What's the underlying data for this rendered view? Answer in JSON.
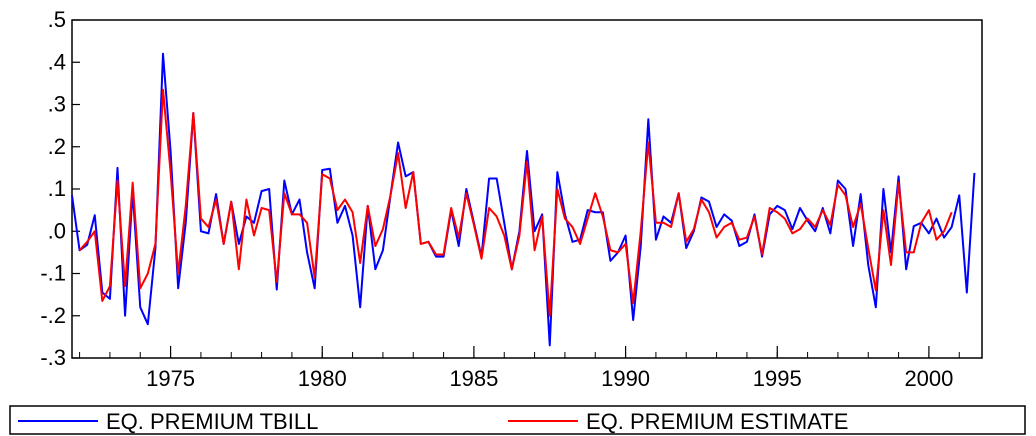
{
  "chart_data": {
    "type": "line",
    "xlim": [
      1971.75,
      2001.75
    ],
    "ylim": [
      -0.3,
      0.5
    ],
    "x_ticks": [
      {
        "value": 1975,
        "label": "1975"
      },
      {
        "value": 1980,
        "label": "1980"
      },
      {
        "value": 1985,
        "label": "1985"
      },
      {
        "value": 1990,
        "label": "1990"
      },
      {
        "value": 1995,
        "label": "1995"
      },
      {
        "value": 2000,
        "label": "2000"
      }
    ],
    "y_ticks": [
      {
        "value": -0.3,
        "label": "-.3"
      },
      {
        "value": -0.2,
        "label": "-.2"
      },
      {
        "value": -0.1,
        "label": "-.1"
      },
      {
        "value": 0.0,
        "label": ".0"
      },
      {
        "value": 0.1,
        "label": ".1"
      },
      {
        "value": 0.2,
        "label": ".2"
      },
      {
        "value": 0.3,
        "label": ".3"
      },
      {
        "value": 0.4,
        "label": ".4"
      },
      {
        "value": 0.5,
        "label": ".5"
      }
    ],
    "grid": false,
    "legend_position": "bottom",
    "series": [
      {
        "name": "EQ. PREMIUM TBILL",
        "color": "#0000ff",
        "x_start": 1971.75,
        "x_step": 0.25,
        "values": [
          0.085,
          -0.045,
          -0.032,
          0.038,
          -0.145,
          -0.16,
          0.15,
          -0.2,
          0.095,
          -0.18,
          -0.22,
          -0.04,
          0.42,
          0.19,
          -0.135,
          0.02,
          0.28,
          0.0,
          -0.005,
          0.088,
          -0.03,
          0.07,
          -0.03,
          0.035,
          0.02,
          0.095,
          0.1,
          -0.138,
          0.12,
          0.04,
          0.075,
          -0.05,
          -0.135,
          0.145,
          0.148,
          0.02,
          0.06,
          -0.01,
          -0.18,
          0.06,
          -0.09,
          -0.045,
          0.085,
          0.21,
          0.13,
          0.14,
          -0.03,
          -0.025,
          -0.06,
          -0.06,
          0.05,
          -0.035,
          0.1,
          0.02,
          -0.06,
          0.125,
          0.125,
          0.02,
          -0.09,
          0.0,
          0.19,
          0.0,
          0.04,
          -0.27,
          0.14,
          0.04,
          -0.025,
          -0.02,
          0.05,
          0.045,
          0.045,
          -0.07,
          -0.05,
          -0.01,
          -0.21,
          -0.035,
          0.265,
          -0.02,
          0.035,
          0.02,
          0.09,
          -0.04,
          0.0,
          0.08,
          0.07,
          0.01,
          0.04,
          0.025,
          -0.035,
          -0.025,
          0.04,
          -0.06,
          0.04,
          0.06,
          0.05,
          0.005,
          0.055,
          0.025,
          0.0,
          0.055,
          -0.005,
          0.12,
          0.1,
          -0.035,
          0.088,
          -0.08,
          -0.18,
          0.1,
          -0.05,
          0.13,
          -0.09,
          0.012,
          0.02,
          -0.005,
          0.03,
          -0.015,
          0.01,
          0.085,
          -0.145,
          0.138
        ]
      },
      {
        "name": "EQ. PREMIUM ESTIMATE",
        "color": "#ff0000",
        "x_start": 1972.0,
        "x_step": 0.25,
        "values": [
          -0.045,
          -0.025,
          0.0,
          -0.165,
          -0.13,
          0.12,
          -0.13,
          0.115,
          -0.135,
          -0.1,
          -0.03,
          0.335,
          0.14,
          -0.1,
          0.06,
          0.28,
          0.03,
          0.01,
          0.075,
          -0.03,
          0.07,
          -0.09,
          0.075,
          -0.01,
          0.055,
          0.05,
          -0.12,
          0.09,
          0.04,
          0.04,
          0.02,
          -0.11,
          0.135,
          0.125,
          0.05,
          0.075,
          0.045,
          -0.075,
          0.06,
          -0.035,
          0.005,
          0.085,
          0.185,
          0.055,
          0.14,
          -0.03,
          -0.025,
          -0.055,
          -0.055,
          0.055,
          -0.015,
          0.09,
          0.015,
          -0.065,
          0.055,
          0.035,
          -0.01,
          -0.09,
          -0.01,
          0.165,
          -0.045,
          0.035,
          -0.2,
          0.1,
          0.03,
          0.01,
          -0.03,
          0.03,
          0.09,
          0.035,
          -0.045,
          -0.05,
          -0.03,
          -0.17,
          0.0,
          0.21,
          0.02,
          0.02,
          0.01,
          0.09,
          -0.025,
          0.005,
          0.075,
          0.045,
          -0.015,
          0.01,
          0.02,
          -0.02,
          -0.015,
          0.035,
          -0.055,
          0.055,
          0.045,
          0.03,
          -0.005,
          0.005,
          0.03,
          0.01,
          0.05,
          0.015,
          0.11,
          0.085,
          0.01,
          0.065,
          -0.04,
          -0.14,
          0.05,
          -0.08,
          0.115,
          -0.05,
          -0.05,
          0.02,
          0.05,
          -0.02,
          0.0,
          0.045
        ]
      }
    ]
  }
}
